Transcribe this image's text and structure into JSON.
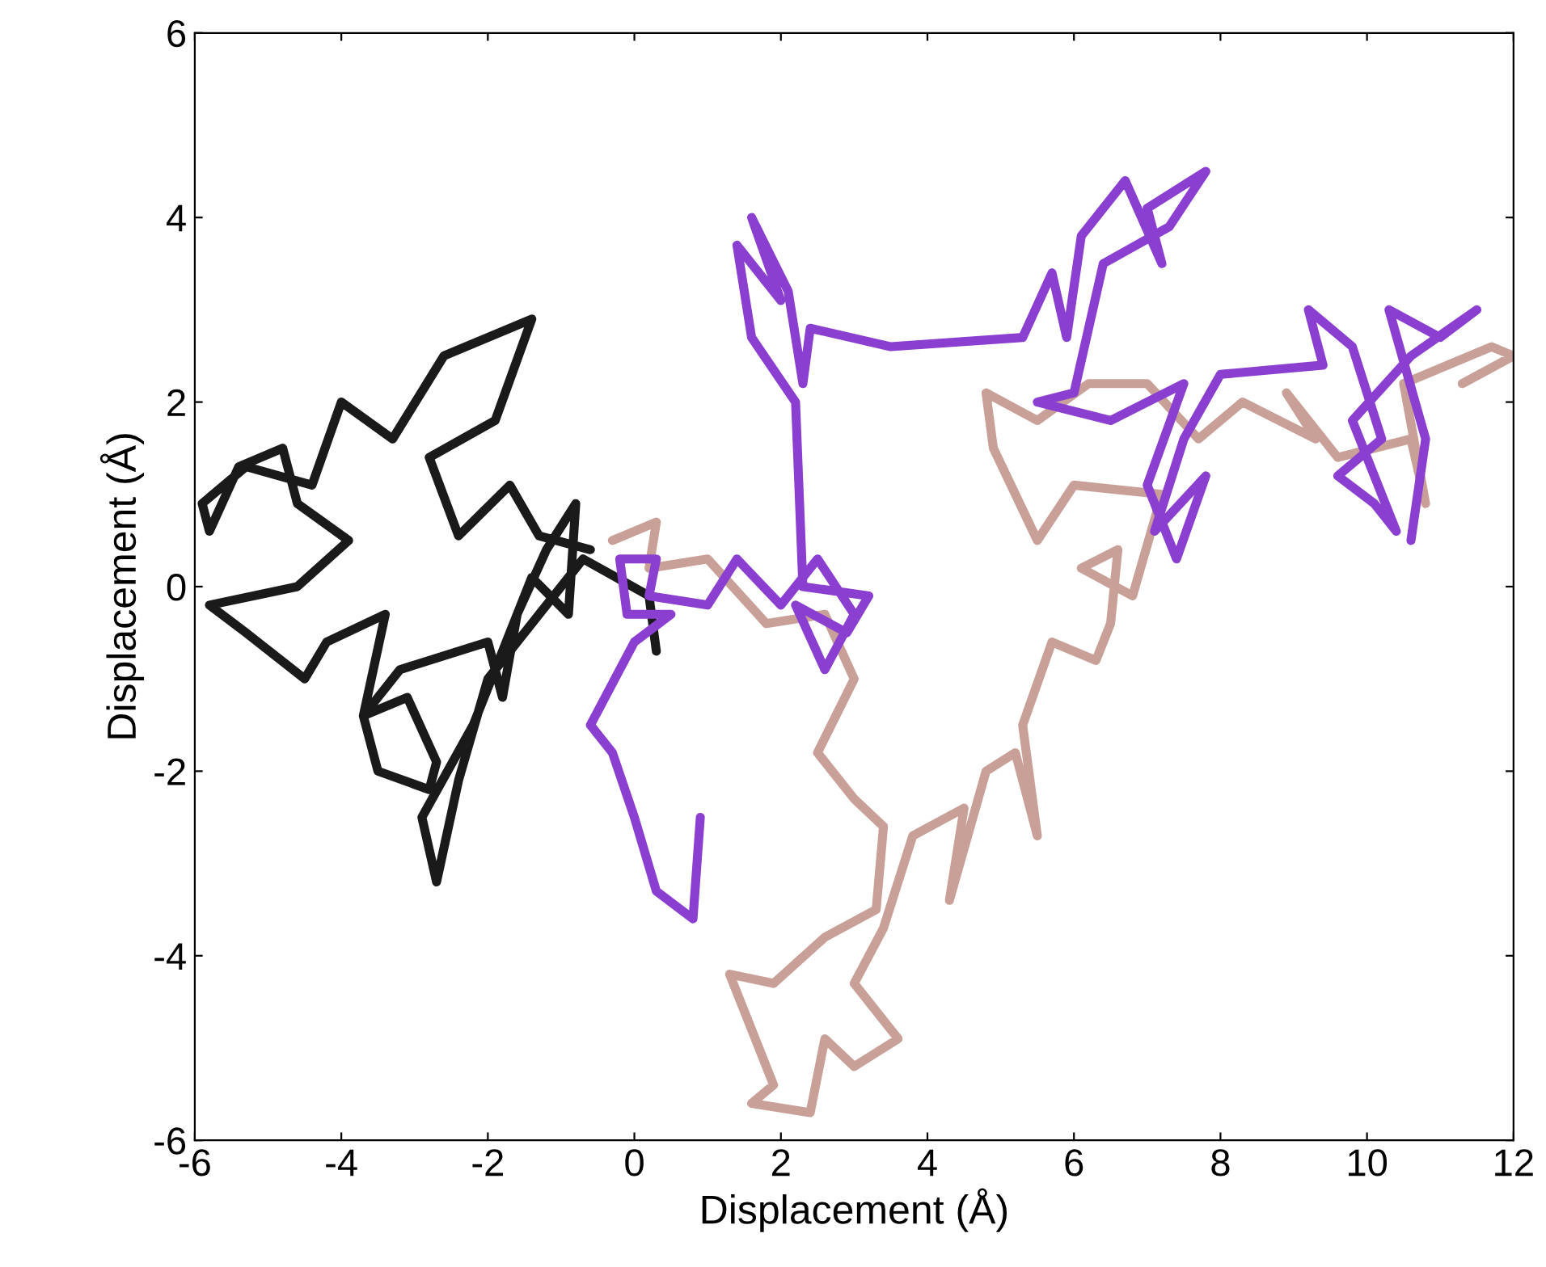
{
  "chart_data": {
    "type": "line",
    "xlabel": "Displacement (Å)",
    "ylabel": "Displacement (Å)",
    "xlim": [
      -6,
      12
    ],
    "ylim": [
      -6,
      6
    ],
    "xticks": [
      -6,
      -4,
      -2,
      0,
      2,
      4,
      6,
      8,
      10,
      12
    ],
    "yticks": [
      -6,
      -4,
      -2,
      0,
      2,
      4,
      6
    ],
    "grid": false,
    "legend": false,
    "marker": "none",
    "line_style": "solid",
    "series": [
      {
        "color": "#c9a098",
        "x": [
          -0.3,
          0.3,
          0.2,
          1.0,
          1.8,
          2.6,
          3.0,
          2.5,
          3.0,
          3.4,
          3.3,
          2.6,
          1.9,
          1.3,
          1.9,
          1.6,
          2.4,
          2.6,
          3.0,
          3.6,
          3.0,
          3.4,
          3.8,
          4.5,
          4.3,
          4.8,
          5.2,
          5.5,
          5.3,
          5.7,
          6.3,
          6.5,
          6.6,
          6.1,
          6.8,
          7.2,
          6.0,
          5.5,
          4.9,
          4.8,
          5.5,
          6.2,
          7.0,
          7.7,
          8.3,
          9.3,
          8.9,
          9.6,
          10.6,
          10.8,
          10.5,
          11.1,
          11.7,
          12.0,
          11.3
        ],
        "values": [
          0.5,
          0.7,
          0.2,
          0.3,
          -0.4,
          -0.3,
          -1.0,
          -1.8,
          -2.3,
          -2.6,
          -3.5,
          -3.8,
          -4.3,
          -4.2,
          -5.4,
          -5.6,
          -5.7,
          -4.9,
          -5.2,
          -4.9,
          -4.3,
          -3.7,
          -2.7,
          -2.4,
          -3.4,
          -2.0,
          -1.8,
          -2.7,
          -1.5,
          -0.6,
          -0.8,
          -0.4,
          0.4,
          0.2,
          -0.1,
          1.0,
          1.1,
          0.5,
          1.5,
          2.1,
          1.8,
          2.2,
          2.2,
          1.6,
          2.0,
          1.6,
          2.1,
          1.4,
          1.6,
          0.9,
          2.2,
          2.4,
          2.6,
          2.5,
          2.2
        ]
      },
      {
        "color": "#1a1a1a",
        "x": [
          -0.6,
          -1.3,
          -1.7,
          -2.4,
          -2.8,
          -1.9,
          -1.4,
          -2.6,
          -3.3,
          -4.0,
          -4.4,
          -5.3,
          -5.9,
          -5.8,
          -5.4,
          -4.8,
          -4.6,
          -3.9,
          -4.6,
          -5.8,
          -5.3,
          -4.5,
          -4.2,
          -3.4,
          -3.7,
          -3.1,
          -2.7,
          -2.8,
          -3.5,
          -3.7,
          -3.2,
          -2.0,
          -1.8,
          -1.6,
          -1.2,
          -0.8,
          -0.9,
          -1.4,
          -2.2,
          -2.9,
          -2.7,
          -2.4,
          -2.0,
          -1.3,
          -0.7,
          0.2,
          0.3
        ],
        "values": [
          0.4,
          0.55,
          1.1,
          0.55,
          1.4,
          1.8,
          2.9,
          2.5,
          1.6,
          2.0,
          1.1,
          1.3,
          0.9,
          0.6,
          1.3,
          1.5,
          0.9,
          0.5,
          0,
          -0.2,
          -0.5,
          -1.0,
          -0.6,
          -0.3,
          -1.4,
          -1.2,
          -1.9,
          -2.2,
          -2.0,
          -1.4,
          -0.9,
          -0.6,
          -1.2,
          -0.3,
          0.4,
          0.9,
          -0.3,
          0.1,
          -1.5,
          -2.5,
          -3.2,
          -2.1,
          -1.0,
          -0.3,
          0.3,
          -0.1,
          -0.7
        ]
      },
      {
        "color": "#8a3fd0",
        "x": [
          0.9,
          0.8,
          0.3,
          0.0,
          -0.3,
          -0.6,
          0.0,
          0.5,
          -0.1,
          -0.2,
          0.3,
          0.2,
          1.0,
          1.4,
          2.0,
          2.5,
          3.0,
          2.6,
          2.2,
          2.9,
          3.2,
          2.3,
          2.2,
          1.6,
          1.4,
          2.0,
          1.6,
          2.1,
          2.3,
          2.4,
          3.5,
          5.3,
          5.7,
          5.9,
          6.1,
          6.7,
          7.2,
          7.0,
          7.8,
          7.3,
          6.4,
          6.0,
          5.5,
          6.5,
          7.5,
          7.0,
          7.4,
          7.8,
          7.1,
          7.5,
          8.0,
          9.4,
          9.2,
          9.8,
          10.2,
          9.6,
          10.1,
          10.4,
          9.8,
          10.6,
          11.5,
          11.0,
          10.3,
          10.8,
          10.6
        ],
        "values": [
          -2.5,
          -3.6,
          -3.3,
          -2.5,
          -1.8,
          -1.5,
          -0.6,
          -0.3,
          -0.3,
          0.3,
          0.3,
          -0.1,
          -0.2,
          0.3,
          -0.2,
          0.3,
          -0.3,
          -0.9,
          -0.2,
          -0.5,
          -0.1,
          0,
          2.0,
          2.7,
          3.7,
          3.1,
          4.0,
          3.2,
          2.2,
          2.8,
          2.6,
          2.7,
          3.4,
          2.7,
          3.8,
          4.4,
          3.5,
          4.1,
          4.5,
          3.9,
          3.5,
          2.1,
          2.0,
          1.8,
          2.2,
          1.1,
          0.3,
          1.2,
          0.6,
          1.6,
          2.3,
          2.4,
          3.0,
          2.6,
          1.6,
          1.2,
          0.9,
          0.6,
          1.8,
          2.5,
          3.0,
          2.7,
          3.0,
          1.6,
          0.5
        ]
      }
    ]
  }
}
